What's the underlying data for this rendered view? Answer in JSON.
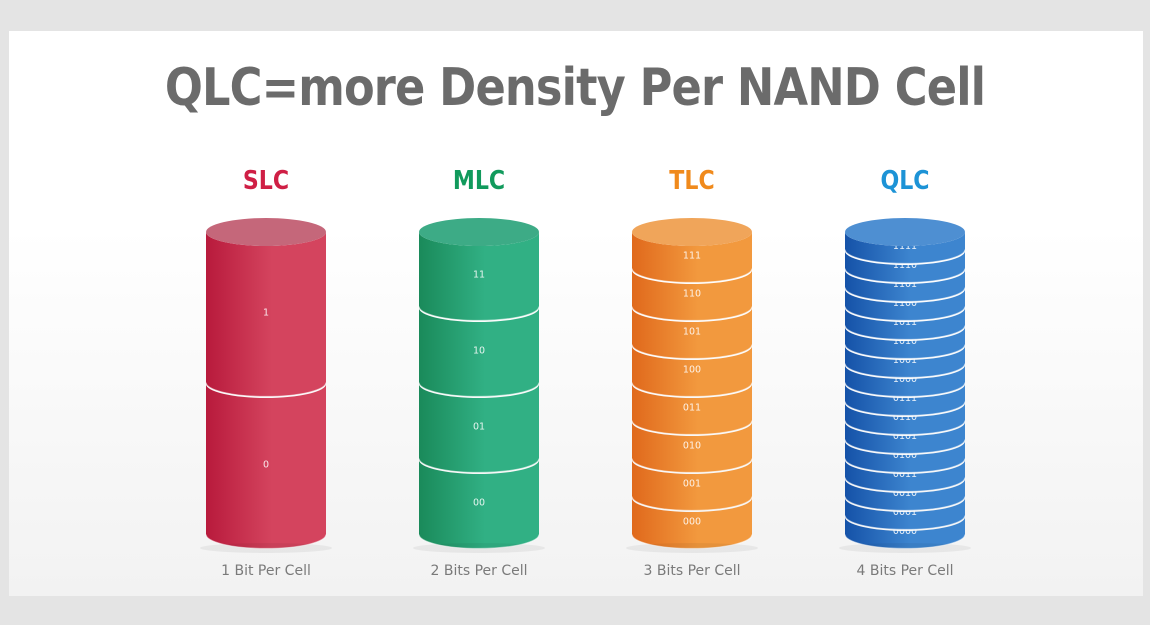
{
  "title": "QLC=more Density Per NAND Cell",
  "colors": {
    "background": "#e4e4e4",
    "panel": "#ffffff",
    "title": "#6b6b6b",
    "caption": "#7a7a7a"
  },
  "columns": [
    {
      "label": "SLC",
      "color": "#cf1f45",
      "side_dark": "#b81a3c",
      "side_light": "#d4445e",
      "top_color": "#c5677a",
      "caption": "1 Bit Per Cell",
      "levels": [
        "1",
        "0"
      ]
    },
    {
      "label": "MLC",
      "color": "#119a5c",
      "side_dark": "#1a8a5a",
      "side_light": "#31b084",
      "top_color": "#3dab86",
      "caption": "2 Bits Per Cell",
      "levels": [
        "11",
        "10",
        "01",
        "00"
      ]
    },
    {
      "label": "TLC",
      "color": "#f08a1c",
      "side_dark": "#e0691c",
      "side_light": "#f2993e",
      "top_color": "#f0a55a",
      "caption": "3 Bits Per Cell",
      "levels": [
        "111",
        "110",
        "101",
        "100",
        "011",
        "010",
        "001",
        "000"
      ]
    },
    {
      "label": "QLC",
      "color": "#1d93d6",
      "side_dark": "#1552a8",
      "side_light": "#3d85cf",
      "top_color": "#4e8fd2",
      "caption": "4 Bits Per Cell",
      "levels": [
        "1111",
        "1110",
        "1101",
        "1100",
        "1011",
        "1010",
        "1001",
        "1000",
        "0111",
        "0110",
        "0101",
        "0100",
        "0011",
        "0010",
        "0001",
        "0000"
      ]
    }
  ]
}
